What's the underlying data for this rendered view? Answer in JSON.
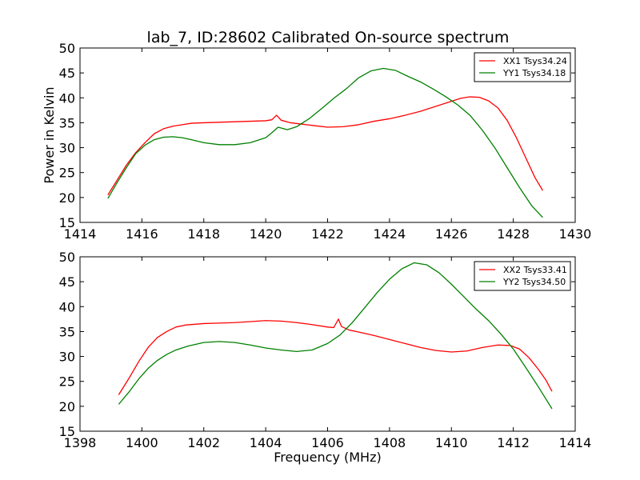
{
  "figure_title": "lab_7, ID:28602 Calibrated On-source spectrum",
  "colors": {
    "xx": "#ff0000",
    "yy": "#008000"
  },
  "chart_data": [
    {
      "type": "line",
      "ylabel": "Power in Kelvin",
      "xlabel": "",
      "xlim": [
        1414,
        1430
      ],
      "ylim": [
        15,
        50
      ],
      "xticks": [
        1414,
        1416,
        1418,
        1420,
        1422,
        1424,
        1426,
        1428,
        1430
      ],
      "yticks": [
        15,
        20,
        25,
        30,
        35,
        40,
        45,
        50
      ],
      "legend_position": "top-right",
      "series": [
        {
          "name": "XX1 Tsys34.24",
          "color": "#ff0000",
          "x": [
            1414.9,
            1415.2,
            1415.5,
            1415.8,
            1416.1,
            1416.4,
            1416.7,
            1417.0,
            1417.3,
            1417.6,
            1418.0,
            1418.5,
            1419.0,
            1419.5,
            1420.0,
            1420.2,
            1420.35,
            1420.5,
            1420.8,
            1421.2,
            1421.6,
            1422.0,
            1422.5,
            1423.0,
            1423.5,
            1424.0,
            1424.5,
            1425.0,
            1425.5,
            1426.0,
            1426.3,
            1426.6,
            1426.9,
            1427.2,
            1427.5,
            1427.8,
            1428.1,
            1428.4,
            1428.7,
            1428.95
          ],
          "values": [
            20.5,
            23.5,
            26.5,
            29.0,
            31.0,
            32.8,
            33.8,
            34.3,
            34.6,
            34.9,
            35.0,
            35.1,
            35.2,
            35.3,
            35.4,
            35.6,
            36.5,
            35.5,
            35.0,
            34.7,
            34.4,
            34.1,
            34.2,
            34.6,
            35.3,
            35.8,
            36.5,
            37.3,
            38.3,
            39.3,
            39.9,
            40.2,
            40.1,
            39.4,
            38.0,
            35.5,
            32.0,
            28.0,
            24.0,
            21.4
          ]
        },
        {
          "name": "YY1 Tsys34.18",
          "color": "#008000",
          "x": [
            1414.9,
            1415.2,
            1415.5,
            1415.8,
            1416.1,
            1416.4,
            1416.7,
            1417.0,
            1417.3,
            1417.6,
            1418.0,
            1418.5,
            1419.0,
            1419.5,
            1420.0,
            1420.2,
            1420.4,
            1420.7,
            1421.0,
            1421.4,
            1421.8,
            1422.2,
            1422.6,
            1423.0,
            1423.4,
            1423.8,
            1424.2,
            1424.6,
            1425.0,
            1425.4,
            1425.8,
            1426.2,
            1426.6,
            1427.0,
            1427.4,
            1427.8,
            1428.2,
            1428.6,
            1428.95
          ],
          "values": [
            19.8,
            23.0,
            26.0,
            28.8,
            30.5,
            31.6,
            32.1,
            32.2,
            32.0,
            31.6,
            31.0,
            30.6,
            30.6,
            31.0,
            32.0,
            33.0,
            34.1,
            33.6,
            34.2,
            35.8,
            37.8,
            39.9,
            41.8,
            44.0,
            45.4,
            45.9,
            45.5,
            44.3,
            43.2,
            41.8,
            40.3,
            38.6,
            36.5,
            33.5,
            30.0,
            26.0,
            22.0,
            18.3,
            16.0
          ]
        }
      ]
    },
    {
      "type": "line",
      "ylabel": "",
      "xlabel": "Frequency (MHz)",
      "xlim": [
        1398,
        1414
      ],
      "ylim": [
        15,
        50
      ],
      "xticks": [
        1398,
        1400,
        1402,
        1404,
        1406,
        1408,
        1410,
        1412,
        1414
      ],
      "yticks": [
        15,
        20,
        25,
        30,
        35,
        40,
        45,
        50
      ],
      "legend_position": "top-right",
      "series": [
        {
          "name": "XX2 Tsys33.41",
          "color": "#ff0000",
          "x": [
            1399.25,
            1399.6,
            1399.9,
            1400.2,
            1400.5,
            1400.8,
            1401.1,
            1401.4,
            1402.0,
            1402.5,
            1403.0,
            1403.5,
            1404.0,
            1404.5,
            1405.0,
            1405.5,
            1406.0,
            1406.2,
            1406.35,
            1406.45,
            1406.7,
            1407.0,
            1407.5,
            1408.0,
            1408.5,
            1409.0,
            1409.5,
            1410.0,
            1410.5,
            1411.0,
            1411.5,
            1411.9,
            1412.2,
            1412.5,
            1412.8,
            1413.05,
            1413.25
          ],
          "values": [
            22.3,
            25.8,
            29.0,
            31.8,
            33.8,
            35.0,
            35.9,
            36.3,
            36.6,
            36.7,
            36.8,
            37.0,
            37.2,
            37.1,
            36.8,
            36.4,
            35.9,
            35.8,
            37.5,
            36.0,
            35.3,
            34.9,
            34.2,
            33.4,
            32.6,
            31.8,
            31.2,
            30.9,
            31.1,
            31.8,
            32.3,
            32.2,
            31.5,
            29.8,
            27.5,
            25.3,
            23.0
          ]
        },
        {
          "name": "YY2 Tsys34.50",
          "color": "#008000",
          "x": [
            1399.25,
            1399.6,
            1399.9,
            1400.2,
            1400.5,
            1400.8,
            1401.1,
            1401.5,
            1402.0,
            1402.5,
            1403.0,
            1403.5,
            1404.0,
            1404.5,
            1405.0,
            1405.5,
            1406.0,
            1406.4,
            1406.8,
            1407.2,
            1407.6,
            1408.0,
            1408.4,
            1408.8,
            1409.2,
            1409.6,
            1410.0,
            1410.4,
            1410.8,
            1411.2,
            1411.6,
            1412.0,
            1412.4,
            1412.8,
            1413.25
          ],
          "values": [
            20.4,
            23.0,
            25.5,
            27.6,
            29.2,
            30.4,
            31.3,
            32.1,
            32.8,
            33.0,
            32.8,
            32.3,
            31.7,
            31.3,
            31.0,
            31.3,
            32.6,
            34.3,
            36.8,
            39.8,
            42.8,
            45.5,
            47.6,
            48.8,
            48.4,
            46.8,
            44.5,
            42.0,
            39.5,
            37.2,
            34.5,
            31.5,
            27.8,
            24.0,
            19.5
          ]
        }
      ]
    }
  ]
}
